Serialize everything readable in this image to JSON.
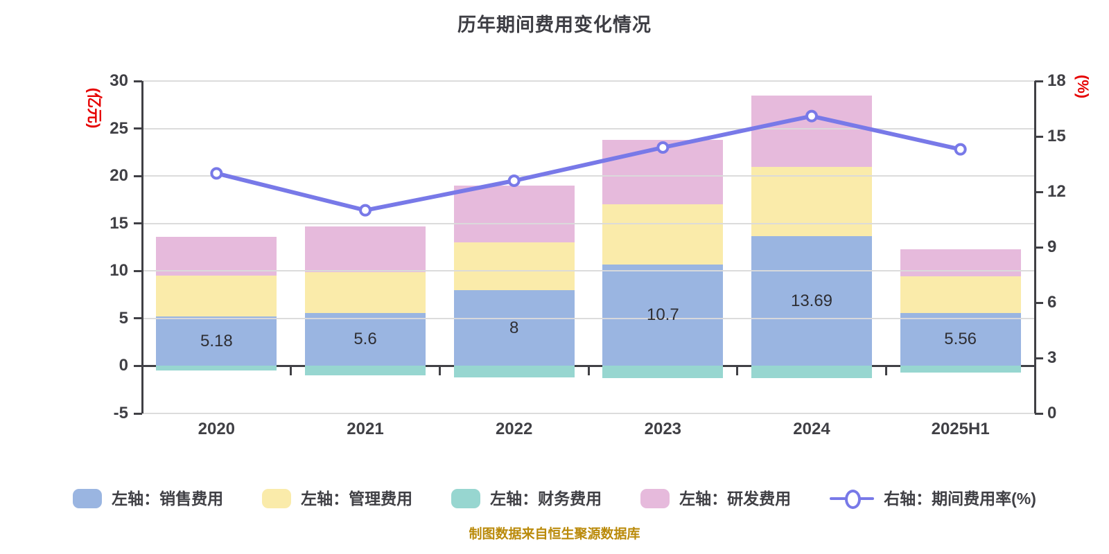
{
  "title": "历年期间费用变化情况",
  "footer": "制图数据来自恒生聚源数据库",
  "colors": {
    "sales_bar": "#9ab5e1",
    "admin_bar": "#faebaa",
    "finance_bar": "#97d6d0",
    "rnd_bar": "#e6badc",
    "rate_line": "#7879e8",
    "axis": "#404045",
    "grid": "#dadada",
    "axis_unit_red": "#e60000",
    "footer_orange": "#ba8a0a"
  },
  "left_axis": {
    "unit": "(亿元)",
    "min": -5,
    "max": 30,
    "step": 5,
    "tick_labels": [
      "30",
      "25",
      "20",
      "15",
      "10",
      "5",
      "0",
      "-5"
    ]
  },
  "right_axis": {
    "unit": "(%)",
    "min": 0,
    "max": 18,
    "step": 3,
    "tick_labels": [
      "18",
      "15",
      "12",
      "9",
      "6",
      "3",
      "0"
    ]
  },
  "legend": [
    {
      "label": "左轴：销售费用",
      "type": "swatch",
      "color": "#9ab5e1"
    },
    {
      "label": "左轴：管理费用",
      "type": "swatch",
      "color": "#faebaa"
    },
    {
      "label": "左轴：财务费用",
      "type": "swatch",
      "color": "#97d6d0"
    },
    {
      "label": "左轴：研发费用",
      "type": "swatch",
      "color": "#e6badc"
    },
    {
      "label": "右轴：期间费用率(%)",
      "type": "line",
      "color": "#7879e8"
    }
  ],
  "chart_data": {
    "type": "bar",
    "subtype": "stacked-bar-with-line",
    "categories": [
      "2020",
      "2021",
      "2022",
      "2023",
      "2024",
      "2025H1"
    ],
    "left_ylim": [
      -5,
      30
    ],
    "right_ylim": [
      0,
      18
    ],
    "grid": "on",
    "legend_position": "bottom",
    "series": [
      {
        "name": "左轴：销售费用",
        "kind": "bar",
        "axis": "left",
        "color": "#9ab5e1",
        "values": [
          5.18,
          5.6,
          8,
          10.7,
          13.69,
          5.56
        ],
        "labels": [
          "5.18",
          "5.6",
          "8",
          "10.7",
          "13.69",
          "5.56"
        ]
      },
      {
        "name": "左轴：管理费用",
        "kind": "bar",
        "axis": "left",
        "color": "#faebaa",
        "values": [
          4.3,
          4.25,
          5.0,
          6.3,
          7.3,
          3.9
        ],
        "labels": []
      },
      {
        "name": "左轴：财务费用",
        "kind": "bar",
        "axis": "left",
        "color": "#97d6d0",
        "values": [
          -0.5,
          -1.0,
          -1.2,
          -1.3,
          -1.3,
          -0.7
        ],
        "labels": []
      },
      {
        "name": "左轴：研发费用",
        "kind": "bar",
        "axis": "left",
        "color": "#e6badc",
        "values": [
          4.1,
          4.85,
          6.0,
          6.8,
          7.5,
          2.85
        ],
        "labels": []
      },
      {
        "name": "右轴：期间费用率(%)",
        "kind": "line",
        "axis": "right",
        "color": "#7879e8",
        "values": [
          13.0,
          11.0,
          12.6,
          14.4,
          16.1,
          14.3
        ],
        "labels": []
      }
    ]
  }
}
